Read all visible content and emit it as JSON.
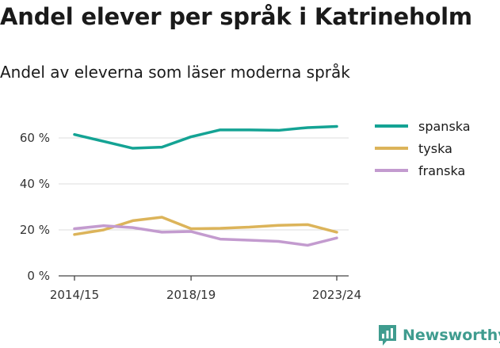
{
  "header": {
    "title": "Andel elever per språk i Katrineholm",
    "subtitle": "Andel av eleverna som läser moderna språk"
  },
  "brand": {
    "name": "Newsworthy",
    "icon": "newsworthy-logo-icon",
    "color": "#3f9c8f"
  },
  "chart_data": {
    "type": "line",
    "x": [
      "2014/15",
      "2015/16",
      "2016/17",
      "2017/18",
      "2018/19",
      "2019/20",
      "2020/21",
      "2021/22",
      "2022/23",
      "2023/24"
    ],
    "x_tick_labels": [
      "2014/15",
      "2018/19",
      "2023/24"
    ],
    "y_ticks": [
      0,
      20,
      40,
      60
    ],
    "y_tick_labels": [
      "0 %",
      "20 %",
      "40 %",
      "60 %"
    ],
    "ylim": [
      0,
      65
    ],
    "grid": true,
    "legend_position": "top-right",
    "series": [
      {
        "name": "spanska",
        "color": "#14a394",
        "values": [
          61.5,
          58.5,
          55.5,
          56,
          60.5,
          63.5,
          63.5,
          63.3,
          64.5,
          65
        ]
      },
      {
        "name": "tyska",
        "color": "#dcb45a",
        "values": [
          18,
          20,
          24,
          25.5,
          20.5,
          20.7,
          21.2,
          22,
          22.3,
          19
        ]
      },
      {
        "name": "franska",
        "color": "#c39bcf",
        "values": [
          20.5,
          21.8,
          21,
          19,
          19.3,
          16,
          15.5,
          15,
          13.3,
          16.5
        ]
      }
    ]
  }
}
